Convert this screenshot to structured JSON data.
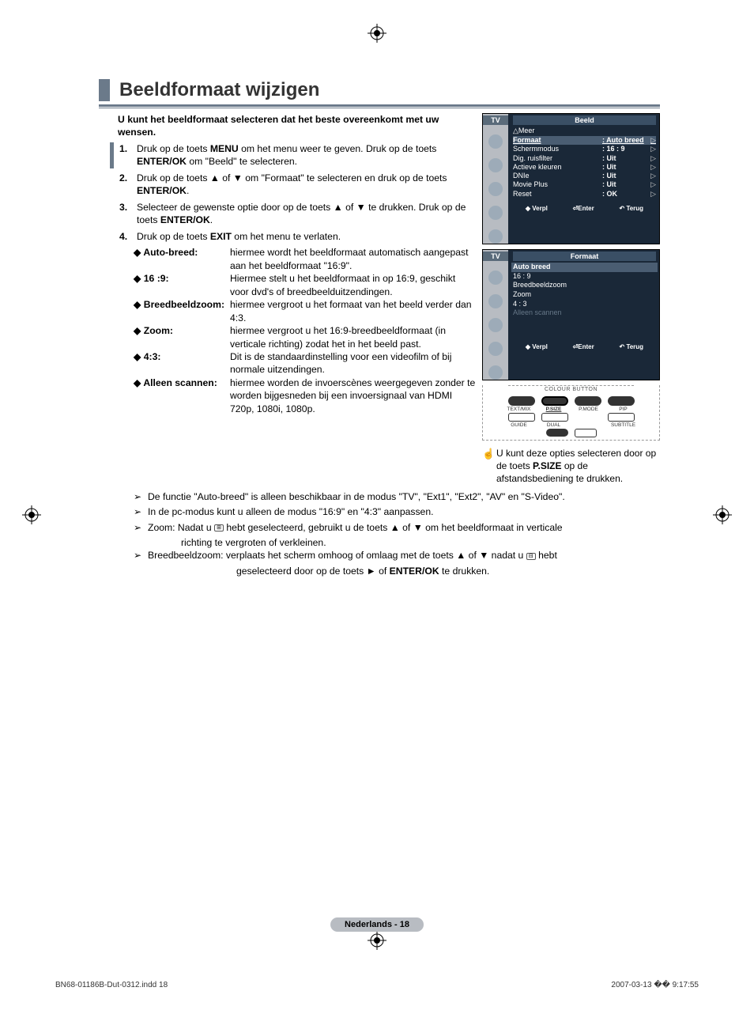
{
  "title": "Beeldformaat wijzigen",
  "intro": "U kunt het beeldformaat selecteren dat het beste overeenkomt met uw wensen.",
  "steps": [
    "Druk op de toets <b>MENU</b> om het menu weer te geven. Druk op de toets <b>ENTER/OK</b> om \"Beeld\" te selecteren.",
    "Druk op de toets ▲ of ▼ om \"Formaat\" te selecteren en druk op de toets <b>ENTER/OK</b>.",
    "Selecteer de gewenste optie door op de toets ▲ of ▼ te drukken. Druk op de toets <b>ENTER/OK</b>.",
    "Druk op de toets <b>EXIT</b> om het menu te verlaten."
  ],
  "options": [
    {
      "label": "Auto-breed:",
      "desc": "hiermee wordt het beeldformaat automatisch aangepast aan het beeldformaat \"16:9\"."
    },
    {
      "label": "16 :9:",
      "desc": "Hiermee stelt u het beeldformaat in op 16:9, geschikt voor dvd's of breedbeelduitzendingen."
    },
    {
      "label": "Breedbeeldzoom:",
      "desc": "hiermee vergroot u het formaat van het beeld verder dan 4:3."
    },
    {
      "label": "Zoom:",
      "desc": "hiermee vergroot u het 16:9-breedbeeldformaat (in verticale richting) zodat het in het beeld past."
    },
    {
      "label": "4:3:",
      "desc": "Dit is de standaardinstelling voor een videofilm of bij normale uitzendingen."
    },
    {
      "label": "Alleen scannen:",
      "desc": "hiermee worden de invoerscènes weergegeven zonder te worden bijgesneden bij een invoersignaal van HDMI 720p, 1080i, 1080p."
    }
  ],
  "notes": [
    "De functie \"Auto-breed\" is alleen beschikbaar in de modus \"TV\", \"Ext1\", \"Ext2\", \"AV\" en \"S-Video\".",
    "In de pc-modus kunt u alleen de modus \"16:9\" en \"4:3\" aanpassen.",
    "Zoom: Nadat u <span class='small-icon'>⊞</span> hebt geselecteerd, gebruikt u de toets ▲ of ▼ om het beeldformaat in verticale",
    "Breedbeeldzoom: verplaats het scherm omhoog of omlaag met de toets ▲ of ▼ nadat u <span class='small-icon'>⊟</span> hebt"
  ],
  "note3_cont": "richting te vergroten of verkleinen.",
  "note4_cont": "geselecteerd door op de toets ► of <b>ENTER/OK</b> te drukken.",
  "osd1": {
    "side": "TV",
    "header": "Beeld",
    "meer": "△Meer",
    "items": [
      {
        "lbl": "Formaat",
        "val": ": Auto breed",
        "hl": true
      },
      {
        "lbl": "Schermmodus",
        "val": ": 16 : 9"
      },
      {
        "lbl": "Dig. ruisfilter",
        "val": ": Uit"
      },
      {
        "lbl": "Actieve kleuren",
        "val": ": Uit"
      },
      {
        "lbl": "DNIe",
        "val": ": Uit"
      },
      {
        "lbl": "Movie Plus",
        "val": ": Uit"
      },
      {
        "lbl": "Reset",
        "val": ": OK"
      }
    ],
    "footer": [
      "◆ Verpl",
      "⏎Enter",
      "↶ Terug"
    ]
  },
  "osd2": {
    "side": "TV",
    "header": "Formaat",
    "items": [
      "Auto breed",
      "16 : 9",
      "Breedbeeldzoom",
      "Zoom",
      "4 : 3"
    ],
    "dim_item": "Alleen scannen",
    "footer": [
      "◆ Verpl",
      "⏎Enter",
      "↶ Terug"
    ]
  },
  "remote": {
    "row1_labels": [
      "TEXT/MIX",
      "P.SIZE",
      "P.MODE",
      "PIP"
    ],
    "row2_labels": [
      "GUIDE",
      "DUAL",
      "",
      "SUBTITLE"
    ]
  },
  "tip": "U kunt deze opties selecteren door op de toets <b>P.SIZE</b> op de afstandsbediening te drukken.",
  "page_num": "Nederlands - 18",
  "footer_left": "BN68-01186B-Dut-0312.indd   18",
  "footer_right": "2007-03-13   �� 9:17:55"
}
